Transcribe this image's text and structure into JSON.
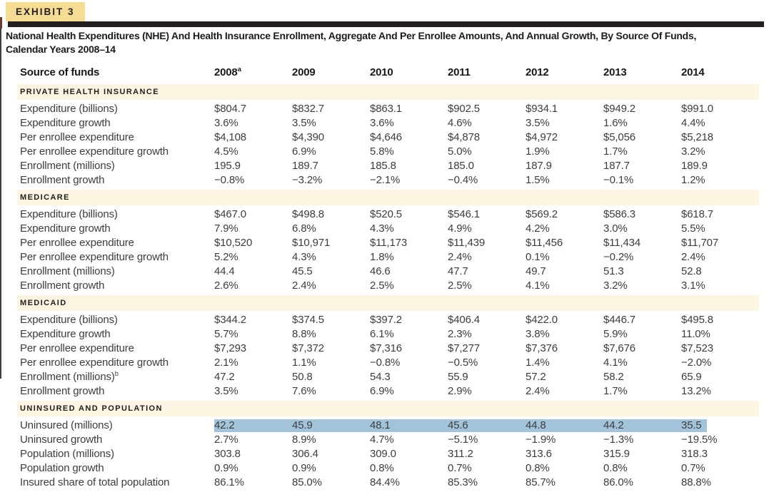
{
  "page": {
    "exhibit_label": "EXHIBIT 3",
    "title_line1": "National Health Expenditures (NHE) And Health Insurance Enrollment, Aggregate And Per Enrollee Amounts, And Annual Growth, By Source Of Funds,",
    "title_line2": "Calendar Years 2008–14"
  },
  "table": {
    "row_header": "Source of funds",
    "years": [
      {
        "label": "2008",
        "sup": "a"
      },
      {
        "label": "2009",
        "sup": ""
      },
      {
        "label": "2010",
        "sup": ""
      },
      {
        "label": "2011",
        "sup": ""
      },
      {
        "label": "2012",
        "sup": ""
      },
      {
        "label": "2013",
        "sup": ""
      },
      {
        "label": "2014",
        "sup": ""
      }
    ],
    "sections": [
      {
        "header": "PRIVATE HEALTH INSURANCE",
        "rows": [
          {
            "label": "Expenditure (billions)",
            "sup": "",
            "highlight": false,
            "values": [
              "$804.7",
              "$832.7",
              "$863.1",
              "$902.5",
              "$934.1",
              "$949.2",
              "$991.0"
            ]
          },
          {
            "label": "Expenditure growth",
            "sup": "",
            "highlight": false,
            "values": [
              "3.6%",
              "3.5%",
              "3.6%",
              "4.6%",
              "3.5%",
              "1.6%",
              "4.4%"
            ]
          },
          {
            "label": "Per enrollee expenditure",
            "sup": "",
            "highlight": false,
            "values": [
              "$4,108",
              "$4,390",
              "$4,646",
              "$4,878",
              "$4,972",
              "$5,056",
              "$5,218"
            ]
          },
          {
            "label": "Per enrollee expenditure growth",
            "sup": "",
            "highlight": false,
            "values": [
              "4.5%",
              "6.9%",
              "5.8%",
              "5.0%",
              "1.9%",
              "1.7%",
              "3.2%"
            ]
          },
          {
            "label": "Enrollment (millions)",
            "sup": "",
            "highlight": false,
            "values": [
              "195.9",
              "189.7",
              "185.8",
              "185.0",
              "187.9",
              "187.7",
              "189.9"
            ]
          },
          {
            "label": "Enrollment growth",
            "sup": "",
            "highlight": false,
            "values": [
              "−0.8%",
              "−3.2%",
              "−2.1%",
              "−0.4%",
              "1.5%",
              "−0.1%",
              "1.2%"
            ]
          }
        ]
      },
      {
        "header": "MEDICARE",
        "rows": [
          {
            "label": "Expenditure (billions)",
            "sup": "",
            "highlight": false,
            "values": [
              "$467.0",
              "$498.8",
              "$520.5",
              "$546.1",
              "$569.2",
              "$586.3",
              "$618.7"
            ]
          },
          {
            "label": "Expenditure growth",
            "sup": "",
            "highlight": false,
            "values": [
              "7.9%",
              "6.8%",
              "4.3%",
              "4.9%",
              "4.2%",
              "3.0%",
              "5.5%"
            ]
          },
          {
            "label": "Per enrollee expenditure",
            "sup": "",
            "highlight": false,
            "values": [
              "$10,520",
              "$10,971",
              "$11,173",
              "$11,439",
              "$11,456",
              "$11,434",
              "$11,707"
            ]
          },
          {
            "label": "Per enrollee expenditure growth",
            "sup": "",
            "highlight": false,
            "values": [
              "5.2%",
              "4.3%",
              "1.8%",
              "2.4%",
              "0.1%",
              "−0.2%",
              "2.4%"
            ]
          },
          {
            "label": "Enrollment (millions)",
            "sup": "",
            "highlight": false,
            "values": [
              "44.4",
              "45.5",
              "46.6",
              "47.7",
              "49.7",
              "51.3",
              "52.8"
            ]
          },
          {
            "label": "Enrollment growth",
            "sup": "",
            "highlight": false,
            "values": [
              "2.6%",
              "2.4%",
              "2.5%",
              "2.5%",
              "4.1%",
              "3.2%",
              "3.1%"
            ]
          }
        ]
      },
      {
        "header": "MEDICAID",
        "rows": [
          {
            "label": "Expenditure (billions)",
            "sup": "",
            "highlight": false,
            "values": [
              "$344.2",
              "$374.5",
              "$397.2",
              "$406.4",
              "$422.0",
              "$446.7",
              "$495.8"
            ]
          },
          {
            "label": "Expenditure growth",
            "sup": "",
            "highlight": false,
            "values": [
              "5.7%",
              "8.8%",
              "6.1%",
              "2.3%",
              "3.8%",
              "5.9%",
              "11.0%"
            ]
          },
          {
            "label": "Per enrollee expenditure",
            "sup": "",
            "highlight": false,
            "values": [
              "$7,293",
              "$7,372",
              "$7,316",
              "$7,277",
              "$7,376",
              "$7,676",
              "$7,523"
            ]
          },
          {
            "label": "Per enrollee expenditure growth",
            "sup": "",
            "highlight": false,
            "values": [
              "2.1%",
              "1.1%",
              "−0.8%",
              "−0.5%",
              "1.4%",
              "4.1%",
              "−2.0%"
            ]
          },
          {
            "label": "Enrollment (millions)",
            "sup": "b",
            "highlight": false,
            "values": [
              "47.2",
              "50.8",
              "54.3",
              "55.9",
              "57.2",
              "58.2",
              "65.9"
            ]
          },
          {
            "label": "Enrollment growth",
            "sup": "",
            "highlight": false,
            "values": [
              "3.5%",
              "7.6%",
              "6.9%",
              "2.9%",
              "2.4%",
              "1.7%",
              "13.2%"
            ]
          }
        ]
      },
      {
        "header": "UNINSURED AND POPULATION",
        "rows": [
          {
            "label": "Uninsured (millions)",
            "sup": "",
            "highlight": true,
            "values": [
              "42.2",
              "45.9",
              "48.1",
              "45.6",
              "44.8",
              "44.2",
              "35.5"
            ]
          },
          {
            "label": "Uninsured growth",
            "sup": "",
            "highlight": false,
            "values": [
              "2.7%",
              "8.9%",
              "4.7%",
              "−5.1%",
              "−1.9%",
              "−1.3%",
              "−19.5%"
            ]
          },
          {
            "label": "Population (millions)",
            "sup": "",
            "highlight": false,
            "values": [
              "303.8",
              "306.4",
              "309.0",
              "311.2",
              "313.6",
              "315.9",
              "318.3"
            ]
          },
          {
            "label": "Population growth",
            "sup": "",
            "highlight": false,
            "values": [
              "0.9%",
              "0.9%",
              "0.8%",
              "0.7%",
              "0.8%",
              "0.8%",
              "0.7%"
            ]
          },
          {
            "label": "Insured share of total population",
            "sup": "",
            "highlight": false,
            "values": [
              "86.1%",
              "85.0%",
              "84.4%",
              "85.3%",
              "85.7%",
              "86.0%",
              "88.8%"
            ]
          }
        ]
      }
    ]
  },
  "colors": {
    "badge_bg": "#f6dc92",
    "rule_black": "#231f20",
    "section_band_bg": "#fcf5e1",
    "selection_highlight": "#a2c3da",
    "body_text": "#3d3d3d"
  }
}
